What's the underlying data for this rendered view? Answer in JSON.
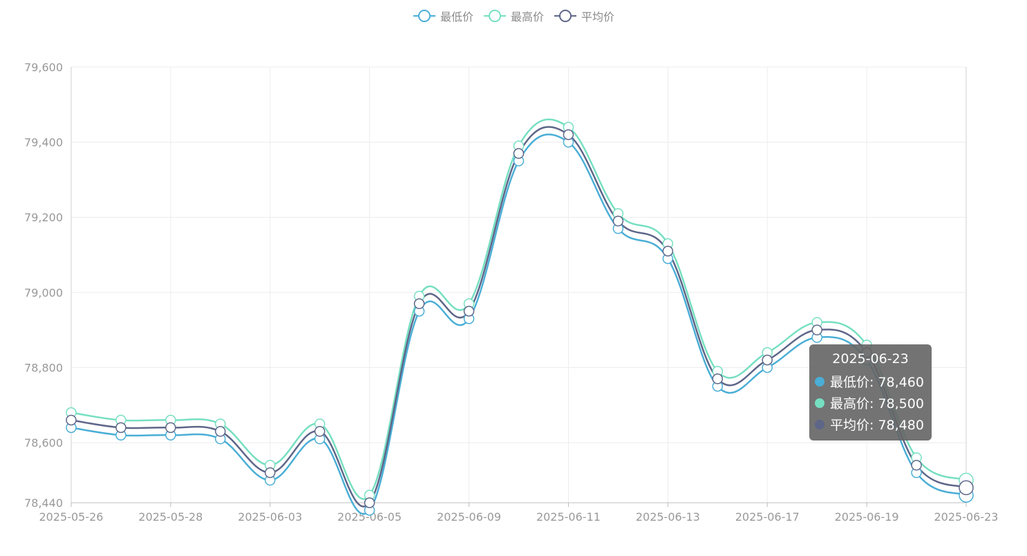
{
  "legend": [
    {
      "label": "最低价",
      "color": "#4aaed6"
    },
    {
      "label": "最高价",
      "color": "#76dfc1"
    },
    {
      "label": "平均价",
      "color": "#5e6688"
    }
  ],
  "chart_data": {
    "type": "line",
    "smooth": true,
    "x": [
      "2025-05-26",
      "2025-05-27",
      "2025-05-28",
      "2025-05-29",
      "2025-06-03",
      "2025-06-04",
      "2025-06-05",
      "2025-06-06",
      "2025-06-09",
      "2025-06-10",
      "2025-06-11",
      "2025-06-12",
      "2025-06-13",
      "2025-06-16",
      "2025-06-17",
      "2025-06-18",
      "2025-06-19",
      "2025-06-20",
      "2025-06-23"
    ],
    "x_tick_labels": [
      "2025-05-26",
      "2025-05-28",
      "2025-06-03",
      "2025-06-05",
      "2025-06-09",
      "2025-06-11",
      "2025-06-13",
      "2025-06-17",
      "2025-06-19",
      "2025-06-23"
    ],
    "y_ticks": [
      "79,600",
      "79,400",
      "79,200",
      "79,000",
      "78,800",
      "78,600",
      "78,440"
    ],
    "ylim": [
      78440,
      79600
    ],
    "grid": true,
    "legend_position": "top-center",
    "series": [
      {
        "name": "最低价",
        "color": "#4aaed6",
        "values": [
          78640,
          78620,
          78620,
          78610,
          78500,
          78610,
          78420,
          78950,
          78930,
          79350,
          79400,
          79170,
          79090,
          78750,
          78800,
          78880,
          78820,
          78520,
          78460
        ]
      },
      {
        "name": "最高价",
        "color": "#76dfc1",
        "values": [
          78680,
          78660,
          78660,
          78650,
          78540,
          78650,
          78460,
          78990,
          78970,
          79390,
          79440,
          79210,
          79130,
          78790,
          78840,
          78920,
          78860,
          78560,
          78500
        ]
      },
      {
        "name": "平均价",
        "color": "#5e6688",
        "values": [
          78660,
          78640,
          78640,
          78630,
          78520,
          78630,
          78440,
          78970,
          78950,
          79370,
          79420,
          79190,
          79110,
          78770,
          78820,
          78900,
          78840,
          78540,
          78480
        ]
      }
    ]
  },
  "tooltip": {
    "title": "2025-06-23",
    "rows": [
      {
        "label": "最低价: 78,460",
        "color": "#4aaed6"
      },
      {
        "label": "最高价: 78,500",
        "color": "#76dfc1"
      },
      {
        "label": "平均价: 78,480",
        "color": "#5e6688"
      }
    ]
  }
}
